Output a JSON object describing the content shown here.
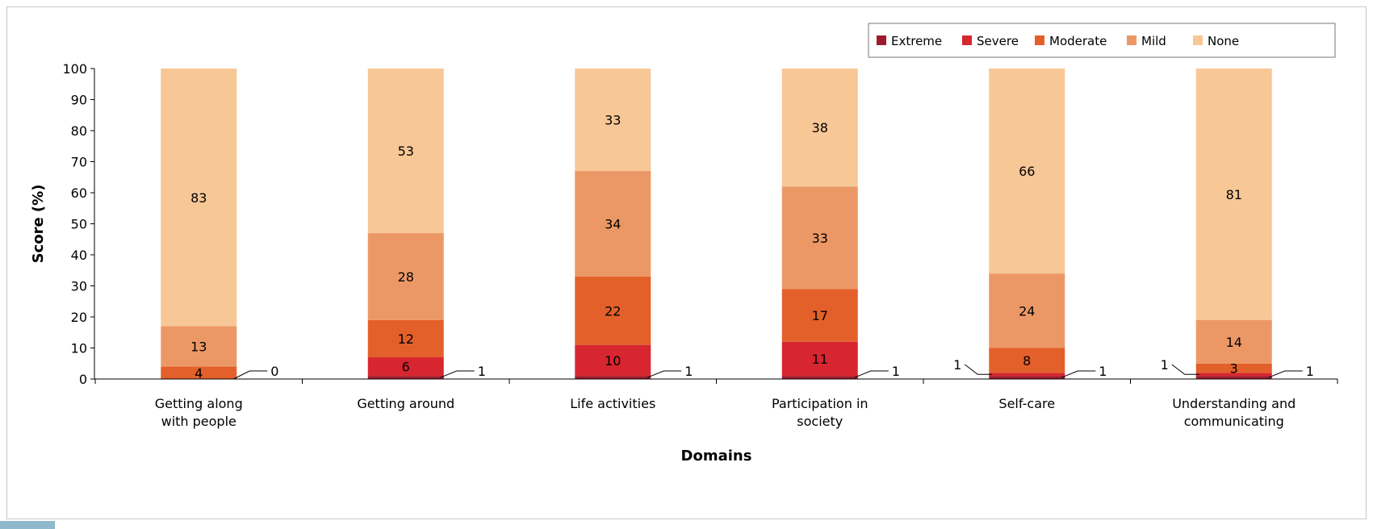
{
  "chart_data": {
    "type": "bar",
    "stacked": true,
    "title": "",
    "xlabel": "Domains",
    "ylabel": "Score (%)",
    "ylim": [
      0,
      100
    ],
    "yticks": [
      0,
      10,
      20,
      30,
      40,
      50,
      60,
      70,
      80,
      90,
      100
    ],
    "grid": false,
    "legend_position": "top-right",
    "categories": [
      [
        "Getting along",
        "with people"
      ],
      [
        "Getting around"
      ],
      [
        "Life activities"
      ],
      [
        "Participation in",
        "society"
      ],
      [
        "Self-care"
      ],
      [
        "Understanding and",
        "communicating"
      ]
    ],
    "series": [
      {
        "name": "Extreme",
        "color": "#9e1b2b",
        "values": [
          0,
          1,
          1,
          1,
          1,
          1
        ]
      },
      {
        "name": "Severe",
        "color": "#d7262f",
        "values": [
          0,
          6,
          10,
          11,
          1,
          1
        ]
      },
      {
        "name": "Moderate",
        "color": "#e3602a",
        "values": [
          4,
          12,
          22,
          17,
          8,
          3
        ]
      },
      {
        "name": "Mild",
        "color": "#ec9866",
        "values": [
          13,
          28,
          34,
          33,
          24,
          14
        ]
      },
      {
        "name": "None",
        "color": "#f7c796",
        "values": [
          83,
          53,
          33,
          38,
          66,
          81
        ]
      }
    ],
    "data_labels": [
      {
        "category": 0,
        "series": "Extreme",
        "text": "0",
        "leader": "right"
      },
      {
        "category": 0,
        "series": "Moderate",
        "text": "4",
        "leader": ""
      },
      {
        "category": 0,
        "series": "Mild",
        "text": "13",
        "leader": ""
      },
      {
        "category": 0,
        "series": "None",
        "text": "83",
        "leader": ""
      },
      {
        "category": 1,
        "series": "Extreme",
        "text": "1",
        "leader": "right"
      },
      {
        "category": 1,
        "series": "Severe",
        "text": "6",
        "leader": ""
      },
      {
        "category": 1,
        "series": "Moderate",
        "text": "12",
        "leader": ""
      },
      {
        "category": 1,
        "series": "Mild",
        "text": "28",
        "leader": ""
      },
      {
        "category": 1,
        "series": "None",
        "text": "53",
        "leader": ""
      },
      {
        "category": 2,
        "series": "Extreme",
        "text": "1",
        "leader": "right"
      },
      {
        "category": 2,
        "series": "Severe",
        "text": "10",
        "leader": ""
      },
      {
        "category": 2,
        "series": "Moderate",
        "text": "22",
        "leader": ""
      },
      {
        "category": 2,
        "series": "Mild",
        "text": "34",
        "leader": ""
      },
      {
        "category": 2,
        "series": "None",
        "text": "33",
        "leader": ""
      },
      {
        "category": 3,
        "series": "Extreme",
        "text": "1",
        "leader": "right"
      },
      {
        "category": 3,
        "series": "Severe",
        "text": "11",
        "leader": ""
      },
      {
        "category": 3,
        "series": "Moderate",
        "text": "17",
        "leader": ""
      },
      {
        "category": 3,
        "series": "Mild",
        "text": "33",
        "leader": ""
      },
      {
        "category": 3,
        "series": "None",
        "text": "38",
        "leader": ""
      },
      {
        "category": 4,
        "series": "Severe",
        "text": "1",
        "leader": "left"
      },
      {
        "category": 4,
        "series": "Extreme",
        "text": "1",
        "leader": "right"
      },
      {
        "category": 4,
        "series": "Moderate",
        "text": "8",
        "leader": ""
      },
      {
        "category": 4,
        "series": "Mild",
        "text": "24",
        "leader": ""
      },
      {
        "category": 4,
        "series": "None",
        "text": "66",
        "leader": ""
      },
      {
        "category": 5,
        "series": "Severe",
        "text": "1",
        "leader": "left"
      },
      {
        "category": 5,
        "series": "Extreme",
        "text": "1",
        "leader": "right"
      },
      {
        "category": 5,
        "series": "Moderate",
        "text": "3",
        "leader": ""
      },
      {
        "category": 5,
        "series": "Mild",
        "text": "14",
        "leader": ""
      },
      {
        "category": 5,
        "series": "None",
        "text": "81",
        "leader": ""
      }
    ]
  }
}
